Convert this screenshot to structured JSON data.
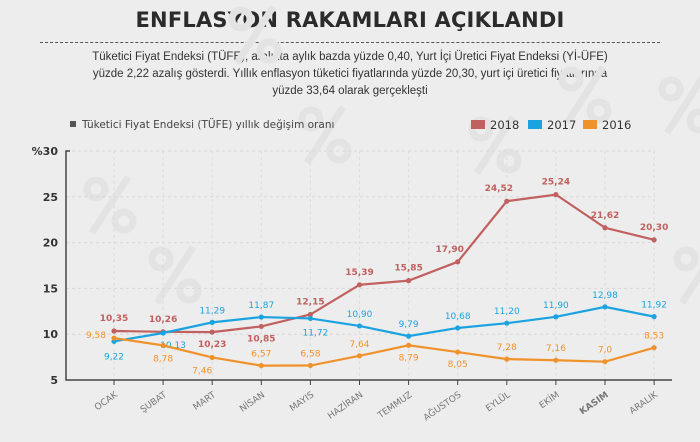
{
  "header": {
    "title": "ENFLASYON RAKAMLARI AÇIKLANDI",
    "subtitle": "Tüketici Fiyat Endeksi (TÜFE), aralıkta aylık bazda yüzde 0,40, Yurt İçi Üretici Fiyat Endeksi (Yİ-ÜFE) yüzde 2,22 azalış gösterdi. Yıllık enflasyon tüketici fiyatlarında yüzde 20,30, yurt içi üretici fiyatlarında yüzde 33,64 olarak gerçekleşti"
  },
  "chart_data": {
    "type": "line",
    "title": "Tüketici Fiyat Endeksi (TÜFE) yıllık değişim oranı",
    "categories": [
      "OCAK",
      "ŞUBAT",
      "MART",
      "NİSAN",
      "MAYIS",
      "HAZİRAN",
      "TEMMUZ",
      "AĞUSTOS",
      "EYLÜL",
      "EKİM",
      "KASIM",
      "ARALIK"
    ],
    "highlighted_category": "KASIM",
    "ylim": [
      5,
      30
    ],
    "yticks": [
      "5",
      "10",
      "15",
      "20",
      "25",
      "%30"
    ],
    "grid": true,
    "legend_placement": "top-right",
    "series": [
      {
        "name": "2018",
        "color": "#c0605f",
        "values": [
          10.35,
          10.26,
          10.23,
          10.85,
          12.15,
          15.39,
          15.85,
          17.9,
          24.52,
          25.24,
          21.62,
          20.3
        ],
        "labels": [
          "10,35",
          "10,26",
          "10,23",
          "10,85",
          "12,15",
          "15,39",
          "15,85",
          "17,90",
          "24,52",
          "25,24",
          "21,62",
          "20,30"
        ]
      },
      {
        "name": "2017",
        "color": "#1aa3e0",
        "values": [
          9.22,
          10.13,
          11.29,
          11.87,
          11.72,
          10.9,
          9.79,
          10.68,
          11.2,
          11.9,
          12.98,
          11.92
        ],
        "labels": [
          "9,22",
          "10,13",
          "11,29",
          "11,87",
          "11,72",
          "10,90",
          "9,79",
          "10,68",
          "11,20",
          "11,90",
          "12,98",
          "11,92"
        ]
      },
      {
        "name": "2016",
        "color": "#f0922b",
        "values": [
          9.58,
          8.78,
          7.46,
          6.57,
          6.58,
          7.64,
          8.79,
          8.05,
          7.28,
          7.16,
          7.0,
          8.53
        ],
        "labels": [
          "9,58",
          "8,78",
          "7,46",
          "6,57",
          "6,58",
          "7,64",
          "8,79",
          "8,05",
          "7,28",
          "7,16",
          "7,0",
          "8,53"
        ]
      }
    ]
  }
}
